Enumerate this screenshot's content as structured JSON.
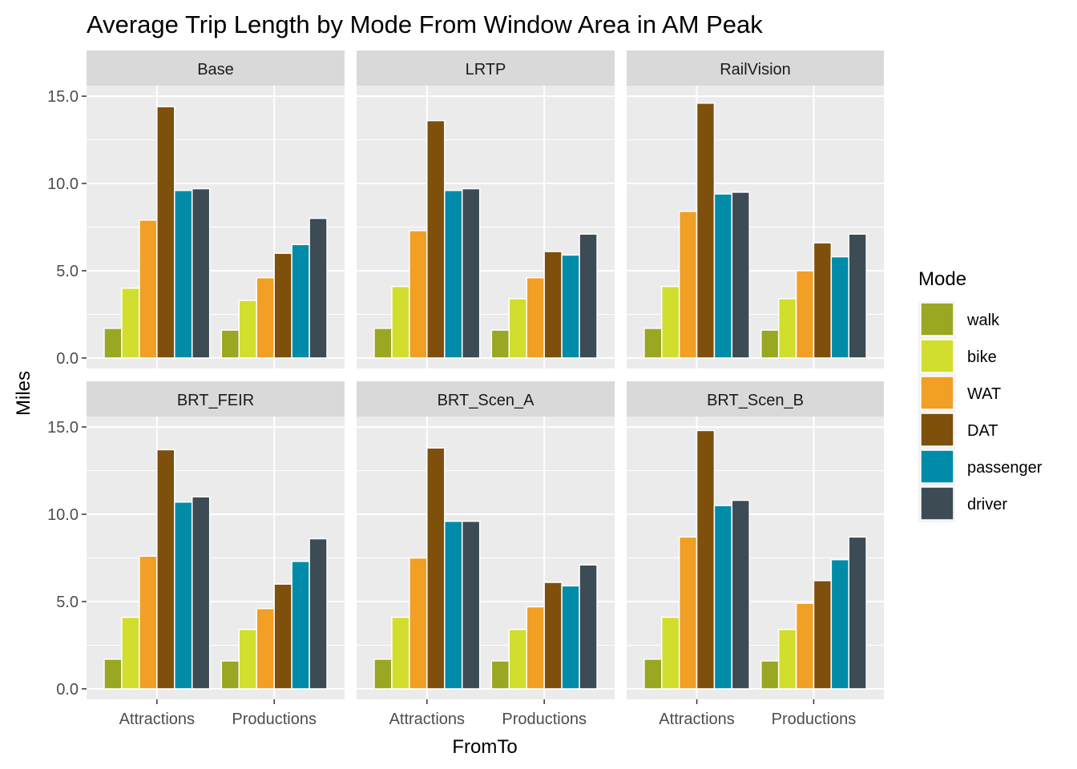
{
  "chart_data": {
    "type": "bar",
    "title": "Average Trip Length by Mode From Window Area in AM Peak",
    "xlabel": "FromTo",
    "ylabel": "Miles",
    "ylim": [
      -0.6,
      15.6
    ],
    "y_ticks": [
      "0.0",
      "5.0",
      "10.0",
      "15.0"
    ],
    "y_tick_values": [
      0,
      5,
      10,
      15
    ],
    "categories": [
      "Attractions",
      "Productions"
    ],
    "grid": true,
    "legend": {
      "title": "Mode",
      "position": "right",
      "entries": [
        {
          "name": "walk",
          "color": "#9aa722"
        },
        {
          "name": "bike",
          "color": "#d1de2e"
        },
        {
          "name": "WAT",
          "color": "#f19f25"
        },
        {
          "name": "DAT",
          "color": "#7f4f0c"
        },
        {
          "name": "passenger",
          "color": "#008ca8"
        },
        {
          "name": "driver",
          "color": "#3d4b54"
        }
      ]
    },
    "panels": [
      {
        "name": "Base",
        "series": [
          {
            "name": "walk",
            "values": [
              1.7,
              1.6
            ]
          },
          {
            "name": "bike",
            "values": [
              4.0,
              3.3
            ]
          },
          {
            "name": "WAT",
            "values": [
              7.9,
              4.6
            ]
          },
          {
            "name": "DAT",
            "values": [
              14.4,
              6.0
            ]
          },
          {
            "name": "passenger",
            "values": [
              9.6,
              6.5
            ]
          },
          {
            "name": "driver",
            "values": [
              9.7,
              8.0
            ]
          }
        ]
      },
      {
        "name": "LRTP",
        "series": [
          {
            "name": "walk",
            "values": [
              1.7,
              1.6
            ]
          },
          {
            "name": "bike",
            "values": [
              4.1,
              3.4
            ]
          },
          {
            "name": "WAT",
            "values": [
              7.3,
              4.6
            ]
          },
          {
            "name": "DAT",
            "values": [
              13.6,
              6.1
            ]
          },
          {
            "name": "passenger",
            "values": [
              9.6,
              5.9
            ]
          },
          {
            "name": "driver",
            "values": [
              9.7,
              7.1
            ]
          }
        ]
      },
      {
        "name": "RailVision",
        "series": [
          {
            "name": "walk",
            "values": [
              1.7,
              1.6
            ]
          },
          {
            "name": "bike",
            "values": [
              4.1,
              3.4
            ]
          },
          {
            "name": "WAT",
            "values": [
              8.4,
              5.0
            ]
          },
          {
            "name": "DAT",
            "values": [
              14.6,
              6.6
            ]
          },
          {
            "name": "passenger",
            "values": [
              9.4,
              5.8
            ]
          },
          {
            "name": "driver",
            "values": [
              9.5,
              7.1
            ]
          }
        ]
      },
      {
        "name": "BRT_FEIR",
        "series": [
          {
            "name": "walk",
            "values": [
              1.7,
              1.6
            ]
          },
          {
            "name": "bike",
            "values": [
              4.1,
              3.4
            ]
          },
          {
            "name": "WAT",
            "values": [
              7.6,
              4.6
            ]
          },
          {
            "name": "DAT",
            "values": [
              13.7,
              6.0
            ]
          },
          {
            "name": "passenger",
            "values": [
              10.7,
              7.3
            ]
          },
          {
            "name": "driver",
            "values": [
              11.0,
              8.6
            ]
          }
        ]
      },
      {
        "name": "BRT_Scen_A",
        "series": [
          {
            "name": "walk",
            "values": [
              1.7,
              1.6
            ]
          },
          {
            "name": "bike",
            "values": [
              4.1,
              3.4
            ]
          },
          {
            "name": "WAT",
            "values": [
              7.5,
              4.7
            ]
          },
          {
            "name": "DAT",
            "values": [
              13.8,
              6.1
            ]
          },
          {
            "name": "passenger",
            "values": [
              9.6,
              5.9
            ]
          },
          {
            "name": "driver",
            "values": [
              9.6,
              7.1
            ]
          }
        ]
      },
      {
        "name": "BRT_Scen_B",
        "series": [
          {
            "name": "walk",
            "values": [
              1.7,
              1.6
            ]
          },
          {
            "name": "bike",
            "values": [
              4.1,
              3.4
            ]
          },
          {
            "name": "WAT",
            "values": [
              8.7,
              4.9
            ]
          },
          {
            "name": "DAT",
            "values": [
              14.8,
              6.2
            ]
          },
          {
            "name": "passenger",
            "values": [
              10.5,
              7.4
            ]
          },
          {
            "name": "driver",
            "values": [
              10.8,
              8.7
            ]
          }
        ]
      }
    ]
  }
}
